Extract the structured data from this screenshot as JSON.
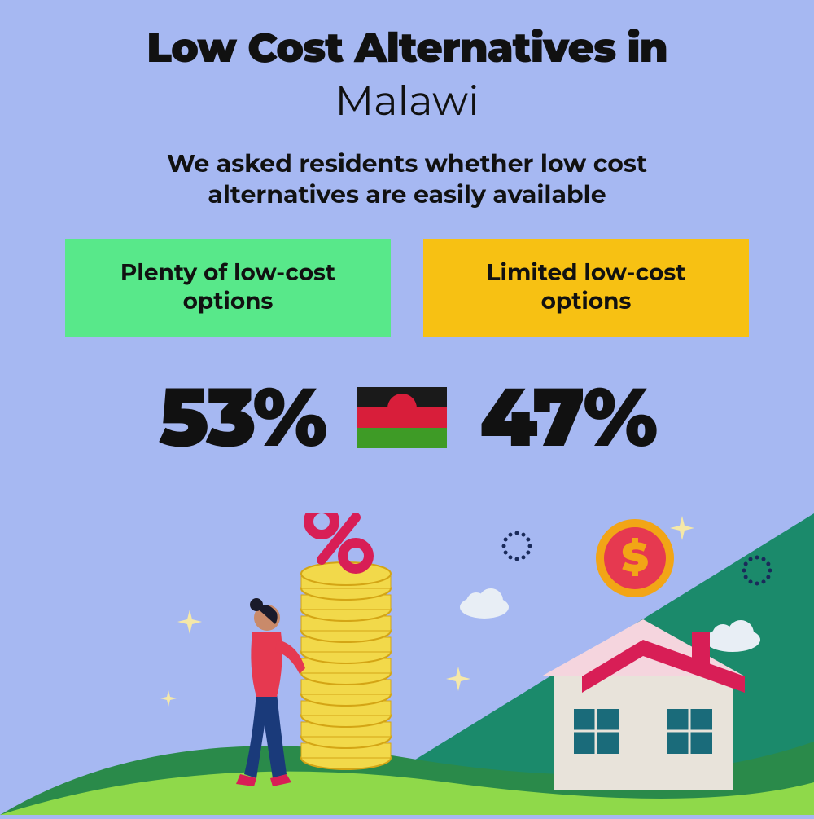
{
  "title_line1": "Low Cost Alternatives in",
  "title_line2": "Malawi",
  "question": "We asked residents whether low cost alternatives are easily available",
  "cards": [
    {
      "label": "Plenty of low-cost options",
      "bg": "#58e88a"
    },
    {
      "label": "Limited low-cost options",
      "bg": "#f7c113"
    }
  ],
  "stats": {
    "left_pct": "53%",
    "right_pct": "47%"
  },
  "flag": {
    "stripes": [
      "#1a1a1a",
      "#d81e3a",
      "#3e9b26"
    ],
    "sun": "#d81e3a"
  },
  "colors": {
    "background": "#a6b8f2",
    "text": "#111111",
    "hill_dark": "#2a8a4a",
    "hill_light": "#8fd94a",
    "triangle": "#1b8a6b",
    "coin_outer": "#f2a516",
    "coin_inner": "#e63950",
    "coin_stack": "#f2d94a",
    "coin_stack_edge": "#d4a515",
    "percent": "#d81e56",
    "person_top": "#e63950",
    "person_bottom": "#1a3a7a",
    "person_skin": "#c98a6a",
    "house_wall": "#e8e3da",
    "house_roof": "#d81e56",
    "house_roof_top": "#f5d5de",
    "window": "#1a6b7a",
    "cloud": "#e8eef5",
    "sparkle": "#f5e8a8",
    "dotring": "#1a2a5a"
  },
  "title_fontsize": 50,
  "question_fontsize": 30,
  "card_fontsize": 28,
  "pct_fontsize": 100
}
